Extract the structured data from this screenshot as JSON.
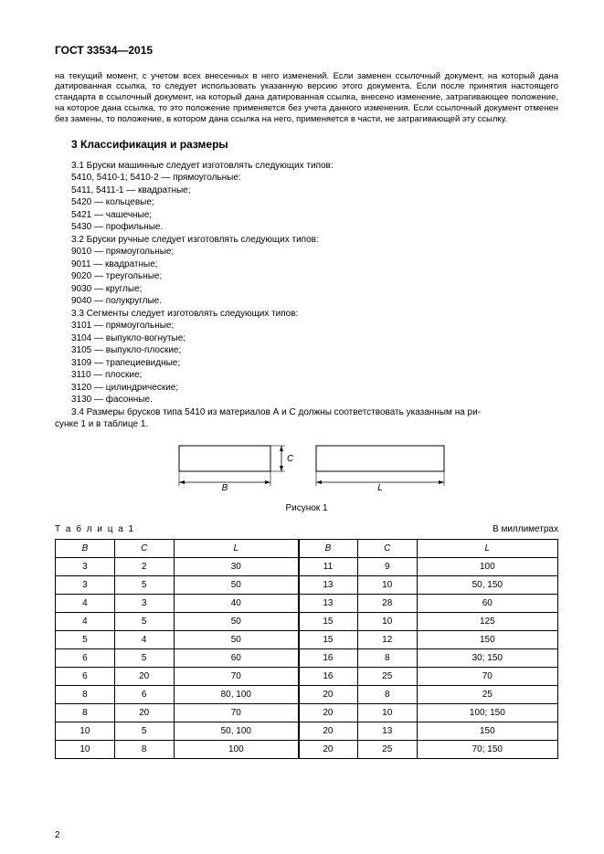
{
  "header": "ГОСТ 33534—2015",
  "intro": "на текущий момент, с учетом всех внесенных в него изменений. Если заменен ссылочный документ, на который дана датированная ссылка, то следует использовать указанную версию этого документа. Если после принятия настоящего стандарта в ссылочный документ, на который дана датированная ссылка, внесено изменение, затрагивающее положение, на которое дана ссылка, то это положение применяется без учета данного изменения. Если ссылочный документ отменен без замены, то положение, в котором дана ссылка на него, применяется в части, не затрагивающей эту ссылку.",
  "section_title": "3  Классификация и размеры",
  "lines": [
    "3.1  Бруски машинные следует изготовлять следующих типов:",
    "5410, 5410-1; 5410-2 — прямоугольные:",
    "5411, 5411-1 — квадратные;",
    "5420 — кольцевые;",
    "5421 — чашечные;",
    "5430 — профильные.",
    "3.2  Бруски ручные следует изготовлять следующих типов:",
    "9010 — прямоугольные;",
    "9011 — квадратные;",
    "9020 — треугольные;",
    "9030 — круглые;",
    "9040 — полукруглые.",
    "3.3  Сегменты следует изготовлять следующих типов:",
    "3101 — прямоугольные;",
    "3104 — выпукло-вогнутые;",
    "3105 — выпукло-плоские;",
    "3109 — трапециевидные;",
    "3110 — плоские;",
    "3120 — цилиндрические;",
    "3130 — фасонные.",
    "3.4  Размеры брусков типа 5410 из материалов А и С должны соответствовать указанным на ри-"
  ],
  "last_line_cont": "сунке 1 и в таблице 1.",
  "figure": {
    "caption": "Рисунок 1",
    "label_B": "B",
    "label_C": "C",
    "label_L": "L"
  },
  "table": {
    "label": "Т а б л и ц а  1",
    "units": "В миллиметрах",
    "columns": [
      "B",
      "C",
      "L",
      "B",
      "C",
      "L"
    ],
    "rows": [
      [
        "3",
        "2",
        "30",
        "11",
        "9",
        "100"
      ],
      [
        "3",
        "5",
        "50",
        "13",
        "10",
        "50, 150"
      ],
      [
        "4",
        "3",
        "40",
        "13",
        "28",
        "60"
      ],
      [
        "4",
        "5",
        "50",
        "15",
        "10",
        "125"
      ],
      [
        "5",
        "4",
        "50",
        "15",
        "12",
        "150"
      ],
      [
        "6",
        "5",
        "60",
        "16",
        "8",
        "30; 150"
      ],
      [
        "6",
        "20",
        "70",
        "16",
        "25",
        "70"
      ],
      [
        "8",
        "6",
        "80, 100",
        "20",
        "8",
        "25"
      ],
      [
        "8",
        "20",
        "70",
        "20",
        "10",
        "100; 150"
      ],
      [
        "10",
        "5",
        "50, 100",
        "20",
        "13",
        "150"
      ],
      [
        "10",
        "8",
        "100",
        "20",
        "25",
        "70; 150"
      ]
    ]
  },
  "page_number": "2"
}
